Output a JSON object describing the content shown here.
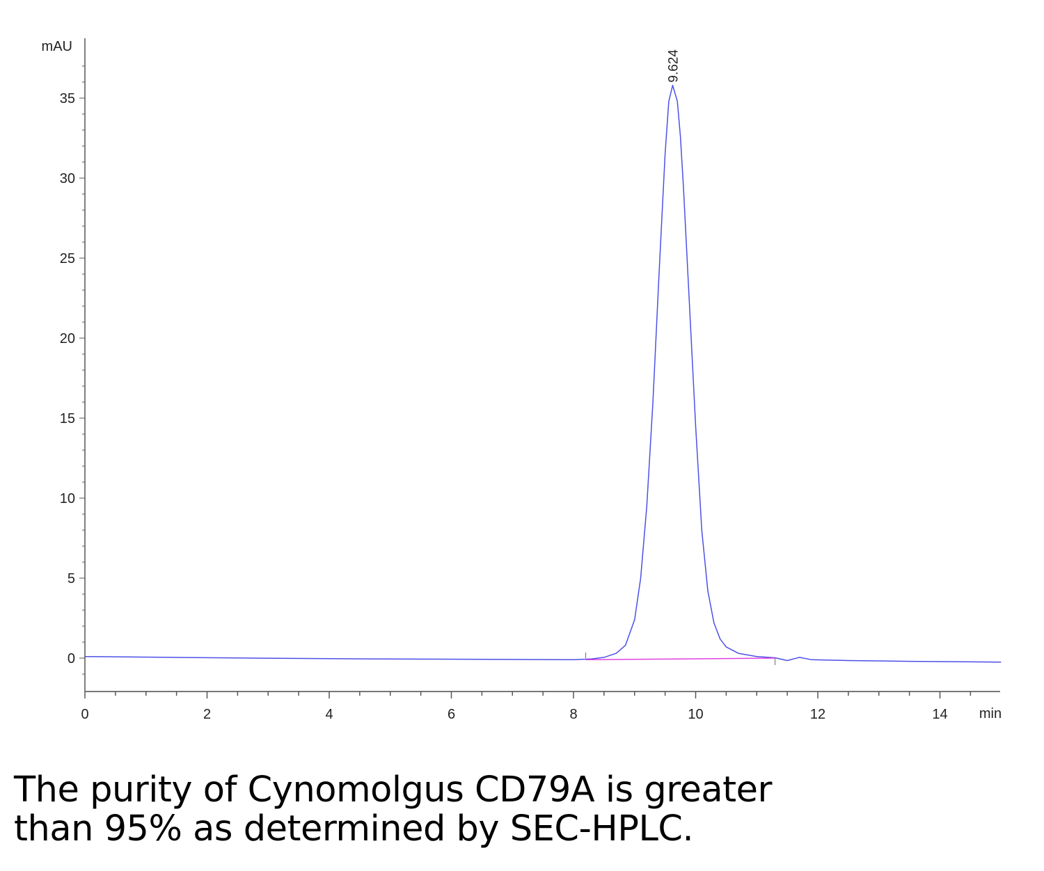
{
  "chart_data": {
    "type": "line",
    "title": "",
    "xlabel": "min",
    "ylabel": "mAU",
    "xlim": [
      0,
      15
    ],
    "ylim": [
      -2,
      37.5
    ],
    "x_ticks": [
      0,
      2,
      4,
      6,
      8,
      10,
      12,
      14
    ],
    "x_tick_labels": [
      "0",
      "2",
      "4",
      "6",
      "8",
      "10",
      "12",
      "14"
    ],
    "y_ticks": [
      0,
      5,
      10,
      15,
      20,
      25,
      30,
      35
    ],
    "y_tick_labels": [
      "0",
      "5",
      "10",
      "15",
      "20",
      "25",
      "30",
      "35"
    ],
    "grid": false,
    "series": [
      {
        "color": "#4b50e6",
        "x": [
          0,
          1.4,
          2.8,
          4.6,
          6.6,
          8.0,
          8.3,
          8.5,
          8.7,
          8.85,
          9.0,
          9.1,
          9.2,
          9.3,
          9.4,
          9.5,
          9.56,
          9.624,
          9.7,
          9.75,
          9.8,
          9.9,
          10.0,
          10.1,
          10.2,
          10.3,
          10.4,
          10.5,
          10.7,
          11.0,
          11.3,
          11.5,
          11.7,
          11.9,
          12.5,
          13.5,
          15.0
        ],
        "y": [
          0.1,
          0.05,
          0.0,
          -0.05,
          -0.08,
          -0.1,
          -0.05,
          0.05,
          0.3,
          0.8,
          2.4,
          5.0,
          9.5,
          16.0,
          24.0,
          31.5,
          34.8,
          35.8,
          34.8,
          32.6,
          29.4,
          22.0,
          14.5,
          8.0,
          4.2,
          2.2,
          1.2,
          0.7,
          0.3,
          0.1,
          0.02,
          -0.15,
          0.05,
          -0.1,
          -0.15,
          -0.2,
          -0.25
        ]
      },
      {
        "color": "#e040e0",
        "x": [
          8.2,
          11.3
        ],
        "y": [
          -0.1,
          0.0
        ]
      }
    ],
    "annotations": [
      {
        "text": "9.624",
        "x": 9.624,
        "y": 35.8
      }
    ],
    "integration_marks": [
      8.2,
      11.3
    ]
  },
  "caption": {
    "line1": "The purity of Cynomolgus CD79A is greater",
    "line2": "than 95% as determined by SEC-HPLC."
  }
}
